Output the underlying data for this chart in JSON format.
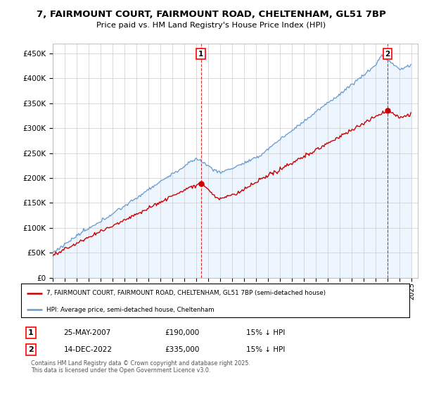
{
  "title_line1": "7, FAIRMOUNT COURT, FAIRMOUNT ROAD, CHELTENHAM, GL51 7BP",
  "title_line2": "Price paid vs. HM Land Registry's House Price Index (HPI)",
  "sale1_date": "25-MAY-2007",
  "sale1_price": 190000,
  "sale1_year": 2007.37,
  "sale1_label": "1",
  "sale1_hpi_note": "15% ↓ HPI",
  "sale2_date": "14-DEC-2022",
  "sale2_price": 335000,
  "sale2_year": 2022.95,
  "sale2_label": "2",
  "sale2_hpi_note": "15% ↓ HPI",
  "legend_line1": "7, FAIRMOUNT COURT, FAIRMOUNT ROAD, CHELTENHAM, GL51 7BP (semi-detached house)",
  "legend_line2": "HPI: Average price, semi-detached house, Cheltenham",
  "footer": "Contains HM Land Registry data © Crown copyright and database right 2025.\nThis data is licensed under the Open Government Licence v3.0.",
  "line_color_property": "#cc0000",
  "line_color_hpi": "#6699cc",
  "fill_color_hpi": "#ddeeff",
  "ylim": [
    0,
    470000
  ],
  "yticks": [
    0,
    50000,
    100000,
    150000,
    200000,
    250000,
    300000,
    350000,
    400000,
    450000
  ],
  "xmin": 1995,
  "xmax": 2025.5,
  "background_color": "#ffffff",
  "grid_color": "#cccccc"
}
